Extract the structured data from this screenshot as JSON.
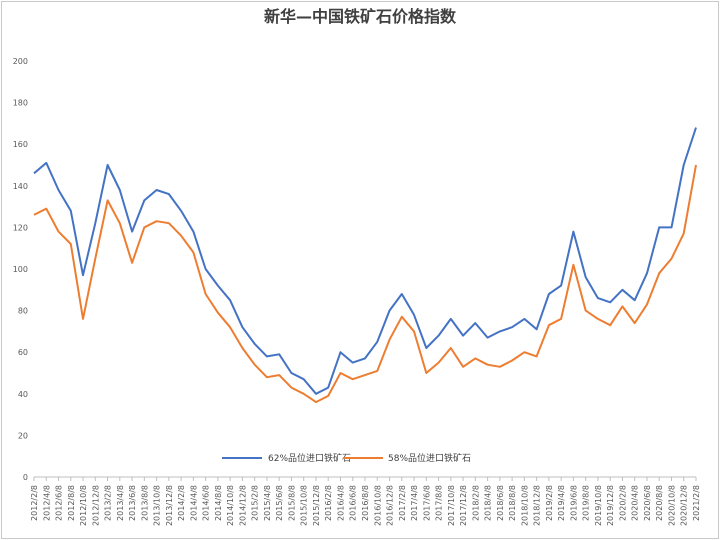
{
  "chart_data": {
    "type": "line",
    "title": "新华—中国铁矿石价格指数",
    "ylim": [
      0,
      200
    ],
    "yticks": [
      0,
      20,
      40,
      60,
      80,
      100,
      120,
      140,
      160,
      180,
      200
    ],
    "grid": false,
    "legend_position": "bottom",
    "x_tick_labels": [
      "2012/2/8",
      "2012/4/8",
      "2012/6/8",
      "2012/8/8",
      "2012/10/8",
      "2012/12/8",
      "2013/2/8",
      "2013/4/8",
      "2013/6/8",
      "2013/8/8",
      "2013/10/8",
      "2013/12/8",
      "2014/2/8",
      "2014/4/8",
      "2014/6/8",
      "2014/8/8",
      "2014/10/8",
      "2014/12/8",
      "2015/2/8",
      "2015/4/8",
      "2015/6/8",
      "2015/8/8",
      "2015/10/8",
      "2015/12/8",
      "2016/2/8",
      "2016/4/8",
      "2016/6/8",
      "2016/8/8",
      "2016/10/8",
      "2016/12/8",
      "2017/2/8",
      "2017/4/8",
      "2017/6/8",
      "2017/8/8",
      "2017/10/8",
      "2017/12/8",
      "2018/2/8",
      "2018/4/8",
      "2018/6/8",
      "2018/8/8",
      "2018/10/8",
      "2018/12/8",
      "2019/2/8",
      "2019/4/8",
      "2019/6/8",
      "2019/8/8",
      "2019/10/8",
      "2019/12/8",
      "2020/2/8",
      "2020/4/8",
      "2020/6/8",
      "2020/8/8",
      "2020/10/8",
      "2020/12/8",
      "2021/2/8"
    ],
    "x": [
      "2012/2/8",
      "2012/4/8",
      "2012/6/8",
      "2012/8/8",
      "2012/10/8",
      "2012/12/8",
      "2013/2/8",
      "2013/4/8",
      "2013/6/8",
      "2013/8/8",
      "2013/10/8",
      "2013/12/8",
      "2014/2/8",
      "2014/4/8",
      "2014/6/8",
      "2014/8/8",
      "2014/10/8",
      "2014/12/8",
      "2015/2/8",
      "2015/4/8",
      "2015/6/8",
      "2015/8/8",
      "2015/10/8",
      "2015/12/8",
      "2016/2/8",
      "2016/4/8",
      "2016/6/8",
      "2016/8/8",
      "2016/10/8",
      "2016/12/8",
      "2017/2/8",
      "2017/4/8",
      "2017/6/8",
      "2017/8/8",
      "2017/10/8",
      "2017/12/8",
      "2018/2/8",
      "2018/4/8",
      "2018/6/8",
      "2018/8/8",
      "2018/10/8",
      "2018/12/8",
      "2019/2/8",
      "2019/4/8",
      "2019/6/8",
      "2019/8/8",
      "2019/10/8",
      "2019/12/8",
      "2020/2/8",
      "2020/4/8",
      "2020/6/8",
      "2020/8/8",
      "2020/10/8",
      "2020/12/8",
      "2021/2/8"
    ],
    "series": [
      {
        "name": "62%品位进口铁矿石",
        "color": "#4472c4",
        "values": [
          146,
          151,
          138,
          128,
          97,
          122,
          150,
          138,
          118,
          133,
          138,
          136,
          128,
          118,
          100,
          92,
          85,
          72,
          64,
          58,
          59,
          50,
          47,
          40,
          43,
          60,
          55,
          57,
          65,
          80,
          88,
          78,
          62,
          68,
          76,
          68,
          74,
          67,
          70,
          72,
          76,
          71,
          88,
          92,
          118,
          96,
          86,
          84,
          90,
          85,
          98,
          120,
          120,
          150,
          168
        ]
      },
      {
        "name": "58%品位进口铁矿石",
        "color": "#ed7d31",
        "values": [
          126,
          129,
          118,
          112,
          76,
          105,
          133,
          122,
          103,
          120,
          123,
          122,
          116,
          108,
          88,
          79,
          72,
          62,
          54,
          48,
          49,
          43,
          40,
          36,
          39,
          50,
          47,
          49,
          51,
          66,
          77,
          70,
          50,
          55,
          62,
          53,
          57,
          54,
          53,
          56,
          60,
          58,
          73,
          76,
          102,
          80,
          76,
          73,
          82,
          74,
          83,
          98,
          105,
          117,
          150
        ]
      }
    ]
  }
}
